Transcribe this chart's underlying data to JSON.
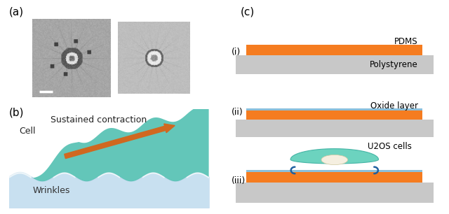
{
  "panel_a_label": "(a)",
  "panel_b_label": "(b)",
  "panel_c_label": "(c)",
  "label_i": "(i)",
  "label_ii": "(ii)",
  "label_iii": "(iii)",
  "text_cell": "Cell",
  "text_wrinkles": "Wrinkles",
  "text_sustained": "Sustained contraction",
  "text_pdms": "PDMS",
  "text_polystyrene": "Polystyrene",
  "text_oxide": "Oxide layer",
  "text_u2os": "U2OS cells",
  "color_orange": "#F57C20",
  "color_gray": "#C8C8C8",
  "color_light_blue": "#B8D8E8",
  "color_light_blue_fill": "#C8E0F0",
  "color_teal": "#4DBFB0",
  "color_blue_thin": "#8BBFDA",
  "color_bg": "#FFFFFF",
  "color_arrow": "#D06820",
  "color_cell_body": "#5CCFB8",
  "color_cell_nucleus": "#F5EFE0"
}
